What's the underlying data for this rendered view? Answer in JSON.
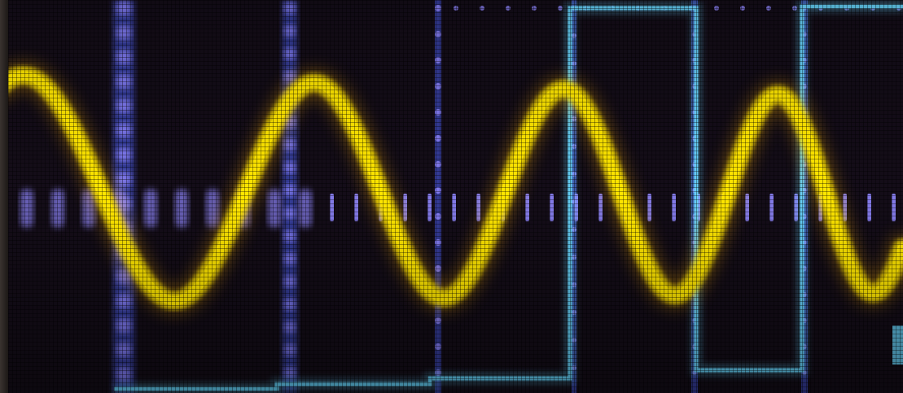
{
  "image": {
    "kind": "photo",
    "subject": "oscilloscope-screen",
    "colors": {
      "screen_background": "#140d18",
      "screen_vignette": "#0b070c",
      "grid_dots": "#8f86ff",
      "graticule_line": "#4f63ff",
      "trace": "#ffe600",
      "trace_glow": "#ffb000",
      "square_wave": "#68d8ff",
      "bezel": "#2a2420"
    },
    "elements": [
      "pixel-mesh",
      "graticule-grid",
      "square-wave-trace",
      "sine-trace"
    ]
  }
}
